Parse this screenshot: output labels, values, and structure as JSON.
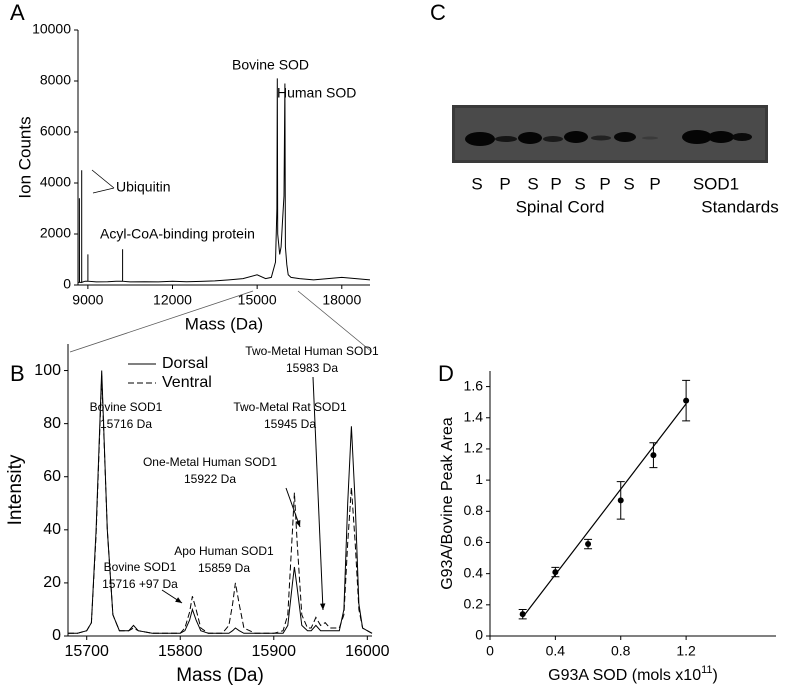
{
  "chart_data": [
    {
      "type": "line",
      "panel_label": "A",
      "xlabel": "Mass (Da)",
      "ylabel": "Ion Counts",
      "xlim": [
        8650,
        19000
      ],
      "xticks": [
        9000,
        12000,
        15000,
        18000
      ],
      "ylim": [
        0,
        10000
      ],
      "yticks": [
        0,
        2000,
        4000,
        6000,
        8000,
        10000
      ],
      "x": [
        8650,
        8700,
        8701,
        8702,
        8780,
        8781,
        8782,
        8900,
        9000,
        9001,
        9002,
        9300,
        9700,
        10000,
        10230,
        10231,
        10232,
        10500,
        11000,
        11500,
        12000,
        12500,
        13000,
        13500,
        14000,
        14500,
        15000,
        15300,
        15500,
        15650,
        15700,
        15716,
        15730,
        15800,
        15850,
        15900,
        15950,
        15983,
        16000,
        16050,
        16100,
        16200,
        16500,
        17000,
        17500,
        18000,
        18500,
        19000
      ],
      "series": [
        {
          "color": "#000000",
          "values": [
            100,
            100,
            3400,
            100,
            100,
            4500,
            100,
            150,
            150,
            1200,
            150,
            120,
            130,
            150,
            150,
            1400,
            150,
            120,
            130,
            120,
            150,
            130,
            140,
            160,
            200,
            250,
            400,
            250,
            300,
            900,
            3000,
            8100,
            2000,
            1200,
            1500,
            2500,
            3500,
            7900,
            1500,
            800,
            400,
            300,
            250,
            200,
            250,
            300,
            250,
            200
          ]
        }
      ],
      "annotations": [
        "Bovine SOD",
        "Human SOD",
        "Ubiquitin",
        "Acyl-CoA-binding protein"
      ]
    },
    {
      "type": "line",
      "panel_label": "B",
      "xlabel": "Mass (Da)",
      "ylabel": "Intensity",
      "xlim": [
        15680,
        16005
      ],
      "xticks": [
        15700,
        15800,
        15900,
        16000
      ],
      "ylim": [
        0,
        110
      ],
      "yticks": [
        0,
        20,
        40,
        60,
        80,
        100
      ],
      "legend": "top-left",
      "x": [
        15680,
        15690,
        15700,
        15705,
        15710,
        15716,
        15722,
        15728,
        15735,
        15745,
        15750,
        15755,
        15770,
        15790,
        15800,
        15805,
        15810,
        15813,
        15817,
        15822,
        15830,
        15845,
        15852,
        15856,
        15859,
        15863,
        15868,
        15880,
        15900,
        15910,
        15915,
        15920,
        15922,
        15925,
        15930,
        15936,
        15940,
        15945,
        15950,
        15955,
        15960,
        15970,
        15975,
        15979,
        15983,
        15987,
        15991,
        15995,
        16000,
        16005
      ],
      "series": [
        {
          "name": "Dorsal",
          "color": "#000000",
          "line_style": "solid",
          "values": [
            1,
            1,
            2,
            5,
            40,
            100,
            40,
            8,
            2,
            2,
            4,
            2,
            1,
            1,
            1,
            2,
            6,
            10,
            6,
            2,
            1,
            1,
            1,
            2,
            3,
            2,
            1,
            1,
            1,
            1,
            4,
            20,
            26,
            18,
            4,
            2,
            2,
            4,
            2,
            2,
            2,
            2,
            10,
            50,
            79,
            50,
            12,
            3,
            2,
            1
          ]
        },
        {
          "name": "Ventral",
          "color": "#000000",
          "line_style": "dashed",
          "values": [
            1,
            1,
            2,
            5,
            38,
            98,
            40,
            8,
            2,
            2,
            3,
            2,
            1,
            1,
            1,
            3,
            9,
            15,
            10,
            3,
            1,
            1,
            4,
            12,
            20,
            12,
            3,
            1,
            1,
            2,
            8,
            40,
            54,
            35,
            8,
            3,
            3,
            7,
            4,
            5,
            3,
            3,
            8,
            35,
            56,
            35,
            10,
            3,
            2,
            1
          ]
        }
      ],
      "annotations": [
        [
          "Bovine SOD1",
          "15716 Da"
        ],
        [
          "Two-Metal Human SOD1",
          "15983 Da"
        ],
        [
          "Two-Metal Rat SOD1",
          "15945 Da"
        ],
        [
          "One-Metal Human SOD1",
          "15922 Da"
        ],
        [
          "Apo Human SOD1",
          "15859 Da"
        ],
        [
          "Bovine SOD1",
          "15716 +97 Da"
        ]
      ]
    },
    {
      "type": "scatter",
      "panel_label": "D",
      "xlabel": [
        "G93A SOD (mols x10",
        "11",
        ")"
      ],
      "ylabel": "G93A/Bovine Peak Area",
      "xlim": [
        0,
        1.75
      ],
      "xticks": [
        0,
        0.4,
        0.8,
        1.2
      ],
      "ylim": [
        0,
        1.7
      ],
      "yticks": [
        0,
        0.2,
        0.4,
        0.6,
        0.8,
        1,
        1.2,
        1.4,
        1.6
      ],
      "x": [
        0.2,
        0.4,
        0.6,
        0.8,
        1.0,
        1.2
      ],
      "series": [
        {
          "color": "#000000",
          "values": [
            0.14,
            0.41,
            0.59,
            0.87,
            1.16,
            1.51
          ],
          "errors": [
            0.03,
            0.03,
            0.03,
            0.12,
            0.08,
            0.13
          ]
        }
      ],
      "fit": {
        "x": [
          0.2,
          1.2
        ],
        "y": [
          0.12,
          1.49
        ]
      }
    }
  ],
  "gel": {
    "panel_label": "C",
    "lanes": [
      "S",
      "P",
      "S",
      "P",
      "S",
      "P",
      "S",
      "P"
    ],
    "standards_label": "SOD1",
    "groups": [
      "Spinal Cord",
      "Standards"
    ]
  }
}
